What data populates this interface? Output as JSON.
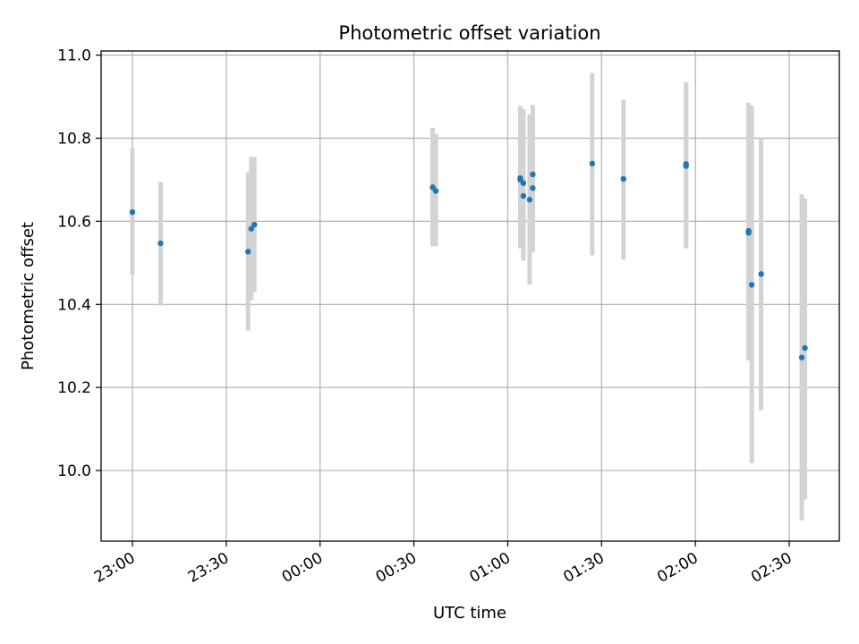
{
  "chart_data": {
    "type": "scatter",
    "title": "Photometric offset variation",
    "xlabel": "UTC time",
    "ylabel": "Photometric offset",
    "x_axis_kind": "time",
    "x_ticks": [
      "23:00",
      "23:30",
      "00:00",
      "00:30",
      "01:00",
      "01:30",
      "02:00",
      "02:30"
    ],
    "y_ticks": [
      "10.0",
      "10.2",
      "10.4",
      "10.6",
      "10.8",
      "11.0"
    ],
    "xlim": [
      "22:50",
      "02:46"
    ],
    "ylim": [
      9.83,
      11.01
    ],
    "grid": true,
    "errorbar_color": "#d3d3d3",
    "marker_color": "#1f77b4",
    "points": [
      {
        "x": "23:00",
        "y": 10.622,
        "lo": 10.47,
        "hi": 10.775
      },
      {
        "x": "23:09",
        "y": 10.547,
        "lo": 10.397,
        "hi": 10.695
      },
      {
        "x": "23:37",
        "y": 10.527,
        "lo": 10.337,
        "hi": 10.718
      },
      {
        "x": "23:38",
        "y": 10.582,
        "lo": 10.41,
        "hi": 10.755
      },
      {
        "x": "23:39",
        "y": 10.592,
        "lo": 10.43,
        "hi": 10.755
      },
      {
        "x": "00:36",
        "y": 10.682,
        "lo": 10.54,
        "hi": 10.825
      },
      {
        "x": "00:37",
        "y": 10.673,
        "lo": 10.54,
        "hi": 10.81
      },
      {
        "x": "01:04",
        "y": 10.704,
        "lo": 10.535,
        "hi": 10.878
      },
      {
        "x": "01:04",
        "y": 10.7,
        "lo": 10.535,
        "hi": 10.875
      },
      {
        "x": "01:05",
        "y": 10.661,
        "lo": 10.505,
        "hi": 10.87
      },
      {
        "x": "01:05",
        "y": 10.692,
        "lo": 10.515,
        "hi": 10.865
      },
      {
        "x": "01:07",
        "y": 10.652,
        "lo": 10.447,
        "hi": 10.858
      },
      {
        "x": "01:08",
        "y": 10.68,
        "lo": 10.525,
        "hi": 10.875
      },
      {
        "x": "01:08",
        "y": 10.713,
        "lo": 10.545,
        "hi": 10.88
      },
      {
        "x": "01:27",
        "y": 10.739,
        "lo": 10.518,
        "hi": 10.957
      },
      {
        "x": "01:37",
        "y": 10.702,
        "lo": 10.508,
        "hi": 10.893
      },
      {
        "x": "01:57",
        "y": 10.738,
        "lo": 10.54,
        "hi": 10.935
      },
      {
        "x": "01:57",
        "y": 10.733,
        "lo": 10.535,
        "hi": 10.93
      },
      {
        "x": "02:17",
        "y": 10.577,
        "lo": 10.268,
        "hi": 10.885
      },
      {
        "x": "02:17",
        "y": 10.572,
        "lo": 10.265,
        "hi": 10.88
      },
      {
        "x": "02:18",
        "y": 10.447,
        "lo": 10.018,
        "hi": 10.878
      },
      {
        "x": "02:21",
        "y": 10.473,
        "lo": 10.145,
        "hi": 10.8
      },
      {
        "x": "02:34",
        "y": 10.272,
        "lo": 9.88,
        "hi": 10.665
      },
      {
        "x": "02:35",
        "y": 10.295,
        "lo": 9.93,
        "hi": 10.655
      }
    ]
  }
}
